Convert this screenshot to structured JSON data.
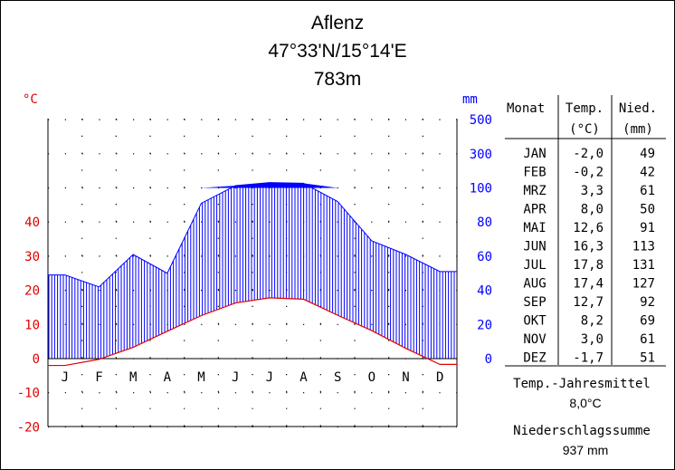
{
  "chart_data": {
    "type": "climate-diagram",
    "title": "Aflenz",
    "coordinates": "47°33'N/15°14'E",
    "elevation": "783m",
    "temp_unit": "°C",
    "precip_unit": "mm",
    "categories": [
      "J",
      "F",
      "M",
      "A",
      "M",
      "J",
      "J",
      "A",
      "S",
      "O",
      "N",
      "D"
    ],
    "temp_ticks": [
      "-20",
      "-10",
      "0",
      "10",
      "20",
      "30",
      "40"
    ],
    "precip_ticks": [
      "0",
      "20",
      "40",
      "60",
      "80",
      "100",
      "300",
      "500"
    ],
    "series": [
      {
        "name": "Temp.",
        "unit": "°C",
        "color": "#e00000",
        "values": [
          -2.0,
          -0.2,
          3.3,
          8.0,
          12.6,
          16.3,
          17.8,
          17.4,
          12.7,
          8.2,
          3.0,
          -1.7
        ]
      },
      {
        "name": "Nied.",
        "unit": "mm",
        "color": "#0000ff",
        "values": [
          49,
          42,
          61,
          50,
          91,
          113,
          131,
          127,
          92,
          69,
          61,
          51
        ]
      }
    ],
    "grid": "dotted",
    "table": {
      "headers": [
        "Monat",
        "Temp.",
        "Nied."
      ],
      "subheaders": [
        "",
        "(°C)",
        "(mm)"
      ],
      "rows": [
        [
          "JAN",
          "-2,0",
          "49"
        ],
        [
          "FEB",
          "-0,2",
          "42"
        ],
        [
          "MRZ",
          "3,3",
          "61"
        ],
        [
          "APR",
          "8,0",
          "50"
        ],
        [
          "MAI",
          "12,6",
          "91"
        ],
        [
          "JUN",
          "16,3",
          "113"
        ],
        [
          "JUL",
          "17,8",
          "131"
        ],
        [
          "AUG",
          "17,4",
          "127"
        ],
        [
          "SEP",
          "12,7",
          "92"
        ],
        [
          "OKT",
          "8,2",
          "69"
        ],
        [
          "NOV",
          "3,0",
          "61"
        ],
        [
          "DEZ",
          "-1,7",
          "51"
        ]
      ]
    },
    "summary": {
      "temp_label": "Temp.-Jahresmittel",
      "temp_value": "8,0°C",
      "precip_label": "Niederschlagssumme",
      "precip_value": "937 mm"
    }
  },
  "colors": {
    "temperature": "#e00000",
    "precipitation": "#0000ff",
    "humid_fill": "#0000ff",
    "grid": "#000000"
  }
}
